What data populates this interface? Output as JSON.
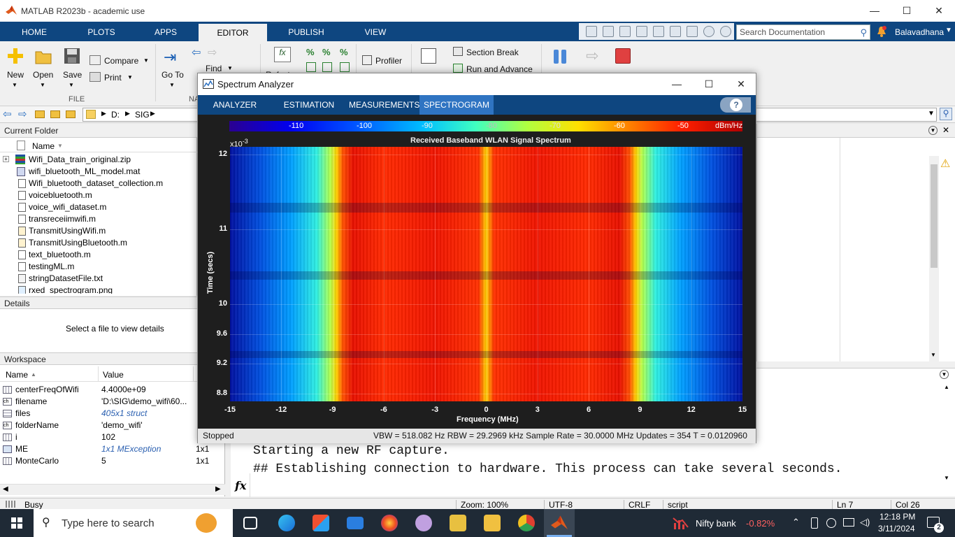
{
  "window": {
    "title": "MATLAB R2023b - academic use"
  },
  "ribbon_tabs": [
    "HOME",
    "PLOTS",
    "APPS",
    "EDITOR",
    "PUBLISH",
    "VIEW"
  ],
  "active_tab": "EDITOR",
  "search": {
    "placeholder": "Search Documentation"
  },
  "user": {
    "name": "Balavadhana"
  },
  "ribbon": {
    "file": {
      "new": "New",
      "open": "Open",
      "save": "Save",
      "compare": "Compare",
      "print": "Print",
      "section": "FILE"
    },
    "nav": {
      "goto": "Go To",
      "find": "Find",
      "section": "NA"
    },
    "code": {
      "refactor": "Refacto"
    },
    "analyze": {
      "profiler": "Profiler"
    },
    "section": {
      "section_break": "Section Break",
      "run_and_advance": "Run and Advance"
    },
    "run": {
      "run": "R"
    },
    "colors": {
      "accent": "#0e4680",
      "stop": "#e04040"
    }
  },
  "address": {
    "path": [
      "D:",
      "SIG"
    ]
  },
  "current_folder": {
    "title": "Current Folder",
    "column": "Name",
    "files": [
      "Wifi_Data_train_original.zip",
      "wifi_bluetooth_ML_model.mat",
      "Wifi_bluetooth_dataset_collection.m",
      "voicebluetooth.m",
      "voice_wifi_dataset.m",
      "transreceiimwifi.m",
      "TransmitUsingWifi.m",
      "TransmitUsingBluetooth.m",
      "text_bluetooth.m",
      "testingML.m",
      "stringDatasetFile.txt",
      "rxed_spectrogram.png"
    ]
  },
  "details": {
    "title": "Details",
    "message": "Select a file to view details"
  },
  "workspace": {
    "title": "Workspace",
    "columns": [
      "Name",
      "Value"
    ],
    "rows": [
      {
        "name": "centerFreqOfWifi",
        "value": "4.4000e+09",
        "size": ""
      },
      {
        "name": "filename",
        "value": "'D:\\SIG\\demo_wifi\\60...",
        "size": ""
      },
      {
        "name": "files",
        "value": "405x1 struct",
        "size": ""
      },
      {
        "name": "folderName",
        "value": "'demo_wifi'",
        "size": ""
      },
      {
        "name": "i",
        "value": "102",
        "size": ""
      },
      {
        "name": "ME",
        "value": "1x1 MException",
        "size": "1x1"
      },
      {
        "name": "MonteCarlo",
        "value": "5",
        "size": "1x1"
      }
    ]
  },
  "command_window": {
    "lines": [
      "Starting a new RF capture.",
      "## Establishing connection to hardware. This process can take several seconds."
    ],
    "prompt": "fx"
  },
  "statusbar": {
    "state": "Busy",
    "zoom": "Zoom: 100%",
    "encoding": "UTF-8",
    "eol": "CRLF",
    "type": "script",
    "ln": "Ln  7",
    "col": "Col  26"
  },
  "spectrum_analyzer": {
    "title": "Spectrum Analyzer",
    "tabs": [
      "ANALYZER",
      "ESTIMATION",
      "MEASUREMENTS",
      "SPECTROGRAM"
    ],
    "active_tab": "SPECTROGRAM",
    "status_left": "Stopped",
    "status_right": "VBW = 518.082 Hz  RBW = 29.2969 kHz  Sample Rate = 30.0000 MHz  Updates = 354  T = 0.0120960"
  },
  "chart_data": {
    "type": "heatmap",
    "title": "Received Baseband WLAN Signal Spectrum",
    "xlabel": "Frequency (MHz)",
    "ylabel": "Time (secs)",
    "y_exponent_label": "x10",
    "y_exponent": "-3",
    "x_ticks": [
      "-15",
      "-12",
      "-9",
      "-6",
      "-3",
      "0",
      "3",
      "6",
      "9",
      "12",
      "15"
    ],
    "xlim": [
      -15,
      15
    ],
    "y_ticks": [
      "12",
      "11",
      "10",
      "9.6",
      "9.2",
      "8.8"
    ],
    "y_tick_values": [
      12,
      11,
      10,
      9.6,
      9.2,
      8.8
    ],
    "ylim": [
      8.7,
      12.1
    ],
    "colorbar": {
      "labels": [
        "-110",
        "-100",
        "-90",
        "-80",
        "-70",
        "-60",
        "-50"
      ],
      "unit": "dBm/Hz"
    },
    "occupied_band_mhz": [
      -8.5,
      8.5
    ],
    "dc_spike_mhz": 0
  },
  "taskbar": {
    "search_placeholder": "Type here to search",
    "stock": {
      "name": "Nifty bank",
      "change": "-0.82%"
    },
    "time": "12:18 PM",
    "date": "3/11/2024",
    "notifications": "2"
  }
}
